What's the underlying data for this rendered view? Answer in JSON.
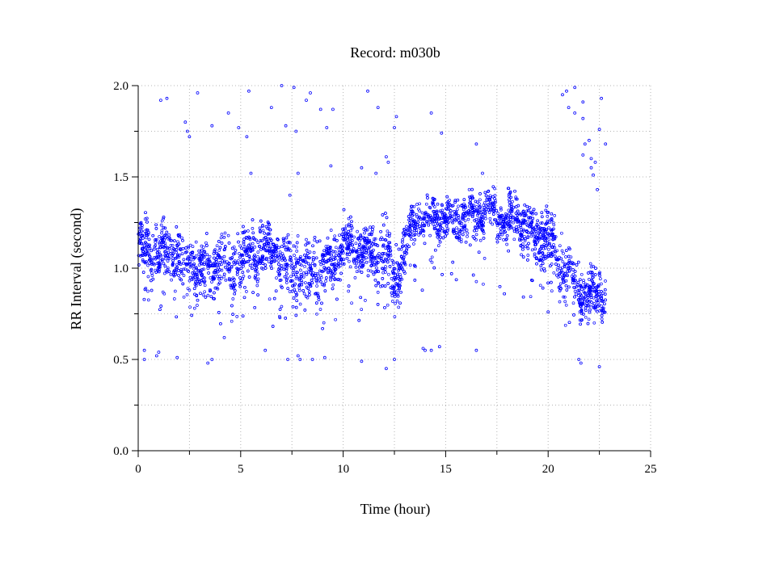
{
  "chart_data": {
    "type": "scatter",
    "title": "Record:  m030b",
    "xlabel": "Time (hour)",
    "ylabel": "RR Interval (second)",
    "xlim": [
      0,
      25
    ],
    "ylim": [
      0,
      2
    ],
    "x_ticks": [
      0,
      5,
      10,
      15,
      20,
      25
    ],
    "x_tick_labels": [
      "0",
      "5",
      "10",
      "15",
      "20",
      "25"
    ],
    "y_ticks": [
      0,
      0.5,
      1,
      1.5,
      2
    ],
    "y_tick_labels": [
      "0.0",
      "0.5",
      "1.0",
      "1.5",
      "2.0"
    ],
    "x_minor_step": 2.5,
    "y_minor_step": 0.25,
    "grid": true,
    "marker": "open-circle",
    "point_color": "#0000ff",
    "series": [
      {
        "band": [
          [
            0.0,
            1.12,
            0.1
          ],
          [
            0.5,
            1.1,
            0.12
          ],
          [
            1.0,
            1.08,
            0.12
          ],
          [
            1.5,
            1.1,
            0.11
          ],
          [
            2.0,
            1.05,
            0.12
          ],
          [
            2.5,
            1.02,
            0.13
          ],
          [
            3.0,
            0.98,
            0.14
          ],
          [
            3.5,
            1.0,
            0.12
          ],
          [
            4.0,
            1.05,
            0.12
          ],
          [
            4.5,
            1.0,
            0.13
          ],
          [
            5.0,
            1.05,
            0.12
          ],
          [
            5.5,
            1.1,
            0.1
          ],
          [
            6.0,
            1.08,
            0.11
          ],
          [
            6.5,
            1.12,
            0.09
          ],
          [
            7.0,
            1.05,
            0.12
          ],
          [
            7.5,
            0.98,
            0.15
          ],
          [
            8.0,
            0.95,
            0.15
          ],
          [
            8.5,
            1.0,
            0.13
          ],
          [
            9.0,
            0.98,
            0.14
          ],
          [
            9.5,
            1.05,
            0.12
          ],
          [
            10.0,
            1.12,
            0.11
          ],
          [
            10.5,
            1.12,
            0.11
          ],
          [
            11.0,
            1.1,
            0.1
          ],
          [
            11.5,
            1.05,
            0.12
          ],
          [
            12.0,
            1.1,
            0.14
          ],
          [
            12.5,
            0.92,
            0.14
          ],
          [
            13.0,
            1.1,
            0.11
          ],
          [
            13.5,
            1.28,
            0.07
          ],
          [
            14.0,
            1.27,
            0.08
          ],
          [
            14.5,
            1.28,
            0.08
          ],
          [
            15.0,
            1.27,
            0.09
          ],
          [
            15.5,
            1.26,
            0.1
          ],
          [
            16.0,
            1.27,
            0.1
          ],
          [
            16.5,
            1.3,
            0.09
          ],
          [
            17.0,
            1.32,
            0.08
          ],
          [
            17.5,
            1.3,
            0.09
          ],
          [
            18.0,
            1.27,
            0.09
          ],
          [
            18.5,
            1.26,
            0.1
          ],
          [
            19.0,
            1.22,
            0.12
          ],
          [
            19.5,
            1.15,
            0.13
          ],
          [
            20.0,
            1.18,
            0.13
          ],
          [
            20.5,
            1.05,
            0.14
          ],
          [
            21.0,
            0.98,
            0.13
          ],
          [
            21.5,
            0.88,
            0.12
          ],
          [
            22.0,
            0.85,
            0.11
          ],
          [
            22.5,
            0.85,
            0.11
          ],
          [
            22.8,
            0.86,
            0.1
          ]
        ],
        "outliers": [
          [
            0.3,
            0.5
          ],
          [
            0.3,
            0.55
          ],
          [
            0.9,
            0.52
          ],
          [
            1.0,
            0.54
          ],
          [
            1.1,
            1.92
          ],
          [
            1.4,
            1.93
          ],
          [
            1.9,
            0.51
          ],
          [
            2.3,
            1.8
          ],
          [
            2.4,
            1.75
          ],
          [
            2.5,
            1.72
          ],
          [
            2.9,
            1.96
          ],
          [
            3.4,
            0.48
          ],
          [
            3.6,
            1.78
          ],
          [
            3.6,
            0.5
          ],
          [
            4.2,
            0.62
          ],
          [
            4.4,
            1.85
          ],
          [
            4.9,
            1.77
          ],
          [
            5.3,
            1.72
          ],
          [
            5.4,
            1.97
          ],
          [
            5.5,
            1.52
          ],
          [
            6.2,
            0.55
          ],
          [
            6.5,
            1.88
          ],
          [
            7.0,
            2.0
          ],
          [
            7.2,
            1.78
          ],
          [
            7.3,
            0.5
          ],
          [
            7.4,
            1.4
          ],
          [
            7.6,
            1.99
          ],
          [
            7.7,
            1.75
          ],
          [
            7.8,
            1.52
          ],
          [
            7.8,
            0.52
          ],
          [
            7.9,
            0.5
          ],
          [
            8.2,
            1.92
          ],
          [
            8.4,
            1.96
          ],
          [
            8.5,
            0.5
          ],
          [
            8.9,
            1.87
          ],
          [
            9.2,
            1.77
          ],
          [
            9.4,
            1.56
          ],
          [
            9.5,
            1.87
          ],
          [
            9.1,
            0.51
          ],
          [
            10.9,
            0.49
          ],
          [
            10.9,
            1.55
          ],
          [
            11.2,
            1.97
          ],
          [
            11.6,
            1.52
          ],
          [
            11.7,
            1.88
          ],
          [
            12.1,
            0.45
          ],
          [
            12.1,
            1.61
          ],
          [
            12.2,
            1.58
          ],
          [
            12.6,
            1.83
          ],
          [
            12.5,
            1.77
          ],
          [
            12.5,
            0.5
          ],
          [
            13.9,
            0.56
          ],
          [
            14.0,
            0.55
          ],
          [
            14.3,
            1.85
          ],
          [
            14.3,
            0.55
          ],
          [
            14.7,
            0.57
          ],
          [
            14.8,
            1.74
          ],
          [
            16.5,
            1.68
          ],
          [
            16.5,
            0.55
          ],
          [
            16.8,
            1.52
          ],
          [
            20.0,
            0.76
          ],
          [
            20.7,
            1.95
          ],
          [
            20.9,
            1.97
          ],
          [
            21.0,
            1.88
          ],
          [
            21.3,
            1.85
          ],
          [
            21.3,
            1.99
          ],
          [
            21.5,
            0.5
          ],
          [
            21.6,
            0.48
          ],
          [
            21.7,
            1.91
          ],
          [
            21.7,
            1.82
          ],
          [
            21.7,
            1.62
          ],
          [
            21.8,
            1.68
          ],
          [
            22.0,
            1.7
          ],
          [
            22.1,
            1.6
          ],
          [
            22.1,
            1.55
          ],
          [
            22.2,
            1.51
          ],
          [
            22.3,
            1.58
          ],
          [
            22.4,
            1.43
          ],
          [
            22.5,
            1.76
          ],
          [
            22.6,
            1.93
          ],
          [
            22.8,
            1.68
          ],
          [
            22.5,
            0.46
          ]
        ]
      }
    ]
  }
}
